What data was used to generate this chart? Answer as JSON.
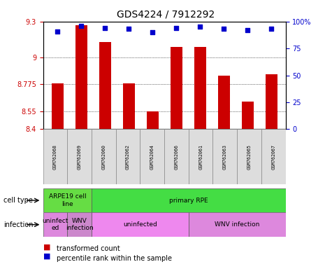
{
  "title": "GDS4224 / 7912292",
  "samples": [
    "GSM762068",
    "GSM762069",
    "GSM762060",
    "GSM762062",
    "GSM762064",
    "GSM762066",
    "GSM762061",
    "GSM762063",
    "GSM762065",
    "GSM762067"
  ],
  "transformed_counts": [
    8.78,
    9.27,
    9.13,
    8.78,
    8.55,
    9.09,
    9.09,
    8.85,
    8.63,
    8.86
  ],
  "percentile_ranks": [
    91,
    96,
    94,
    93,
    90,
    94,
    95,
    93,
    92,
    93
  ],
  "ylim": [
    8.4,
    9.3
  ],
  "yticks": [
    8.4,
    8.55,
    8.775,
    9.0,
    9.3
  ],
  "ytick_labels": [
    "8.4",
    "8.55",
    "8.775",
    "9",
    "9.3"
  ],
  "y2lim": [
    0,
    100
  ],
  "y2ticks": [
    0,
    25,
    50,
    75,
    100
  ],
  "y2tick_labels": [
    "0",
    "25",
    "50",
    "75",
    "100%"
  ],
  "bar_color": "#CC0000",
  "dot_color": "#0000CC",
  "bar_width": 0.5,
  "cell_type_groups": [
    {
      "label": "ARPE19 cell\nline",
      "start": 0,
      "end": 2,
      "color": "#66DD44"
    },
    {
      "label": "primary RPE",
      "start": 2,
      "end": 10,
      "color": "#44DD44"
    }
  ],
  "infection_groups": [
    {
      "label": "uninfect\ned",
      "start": 0,
      "end": 1,
      "color": "#DD88DD"
    },
    {
      "label": "WNV\ninfection",
      "start": 1,
      "end": 2,
      "color": "#CC88CC"
    },
    {
      "label": "uninfected",
      "start": 2,
      "end": 6,
      "color": "#EE88EE"
    },
    {
      "label": "WNV infection",
      "start": 6,
      "end": 10,
      "color": "#DD88DD"
    }
  ],
  "row_labels": [
    "cell type",
    "infection"
  ],
  "legend_items": [
    {
      "label": "transformed count",
      "color": "#CC0000",
      "marker": "s"
    },
    {
      "label": "percentile rank within the sample",
      "color": "#0000CC",
      "marker": "s"
    }
  ],
  "background_color": "#FFFFFF",
  "plot_bg_color": "#FFFFFF",
  "grid_color": "#000000",
  "tick_color_left": "#CC0000",
  "tick_color_right": "#0000CC"
}
